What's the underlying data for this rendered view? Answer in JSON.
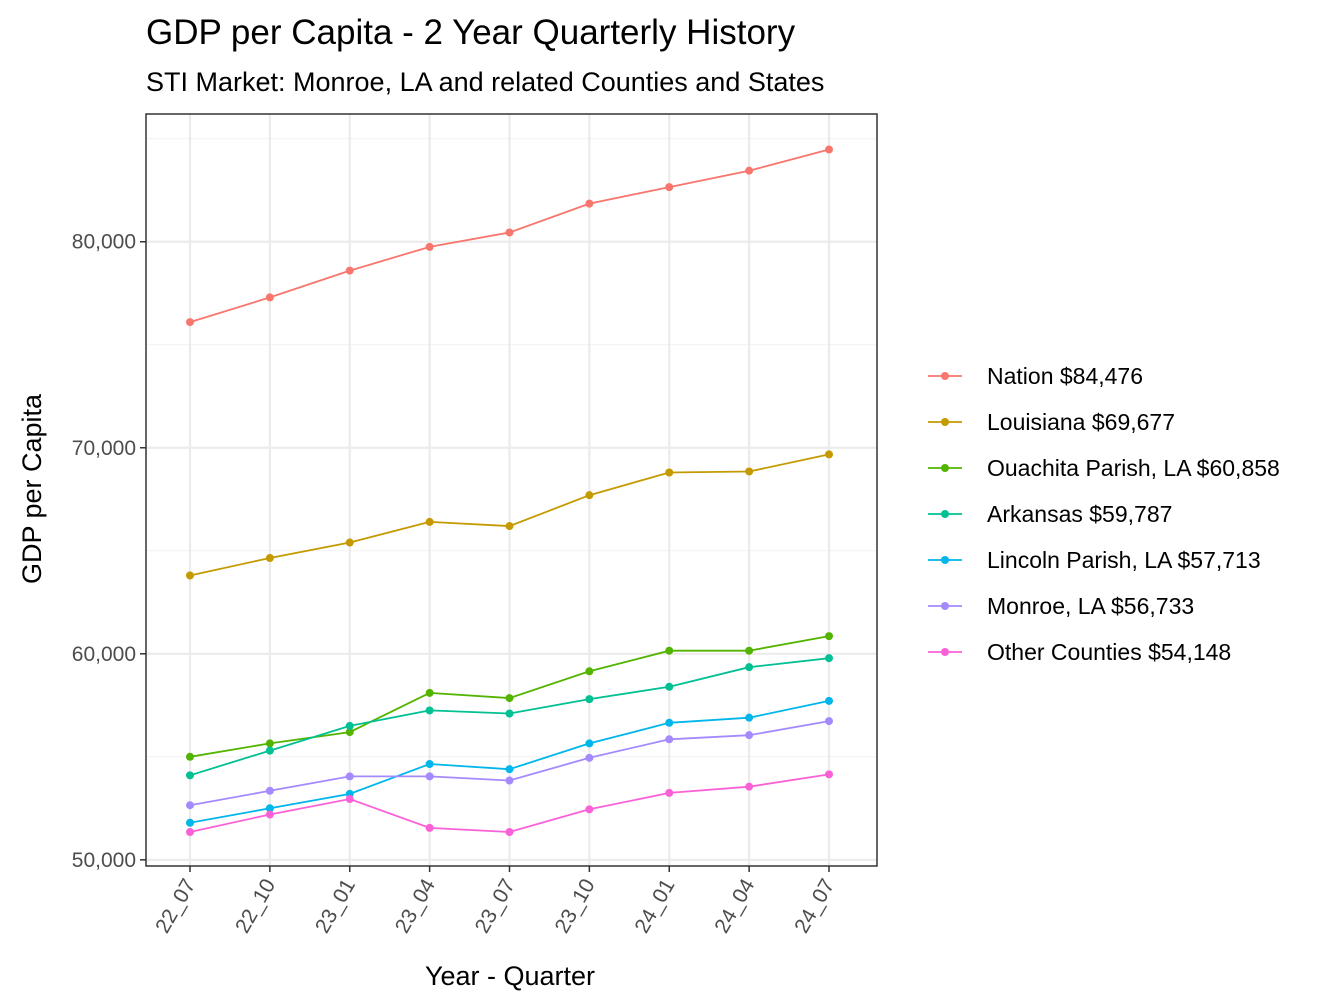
{
  "chart_data": {
    "type": "line",
    "title": "GDP per Capita - 2 Year Quarterly History",
    "subtitle": "STI Market: Monroe, LA and related Counties and States",
    "xlabel": "Year - Quarter",
    "ylabel": "GDP per Capita",
    "categories": [
      "22_07",
      "22_10",
      "23_01",
      "23_04",
      "23_07",
      "23_10",
      "24_01",
      "24_04",
      "24_07"
    ],
    "ylim": [
      49700,
      86200
    ],
    "yticks": [
      50000,
      60000,
      70000,
      80000
    ],
    "ytick_labels": [
      "50,000",
      "60,000",
      "70,000",
      "80,000"
    ],
    "grid": true,
    "legend_position": "right",
    "series": [
      {
        "name": "Nation $84,476",
        "color": "#F8766D",
        "values": [
          76100,
          77300,
          78600,
          79750,
          80450,
          81850,
          82650,
          83450,
          84476
        ]
      },
      {
        "name": "Louisiana $69,677",
        "color": "#C49A00",
        "values": [
          63800,
          64650,
          65400,
          66400,
          66200,
          67700,
          68800,
          68850,
          69677
        ]
      },
      {
        "name": "Ouachita Parish, LA $60,858",
        "color": "#53B400",
        "values": [
          55000,
          55650,
          56200,
          58100,
          57850,
          59150,
          60150,
          60150,
          60858
        ]
      },
      {
        "name": "Arkansas $59,787",
        "color": "#00C094",
        "values": [
          54100,
          55300,
          56500,
          57250,
          57100,
          57800,
          58400,
          59350,
          59787
        ]
      },
      {
        "name": "Lincoln Parish, LA $57,713",
        "color": "#00B6EB",
        "values": [
          51800,
          52500,
          53200,
          54650,
          54400,
          55650,
          56650,
          56900,
          57713
        ]
      },
      {
        "name": "Monroe, LA $56,733",
        "color": "#A58AFF",
        "values": [
          52650,
          53350,
          54050,
          54050,
          53850,
          54950,
          55850,
          56050,
          56733
        ]
      },
      {
        "name": "Other Counties $54,148",
        "color": "#FB61D7",
        "values": [
          51350,
          52200,
          52950,
          51550,
          51350,
          52450,
          53250,
          53550,
          54148
        ]
      }
    ]
  }
}
